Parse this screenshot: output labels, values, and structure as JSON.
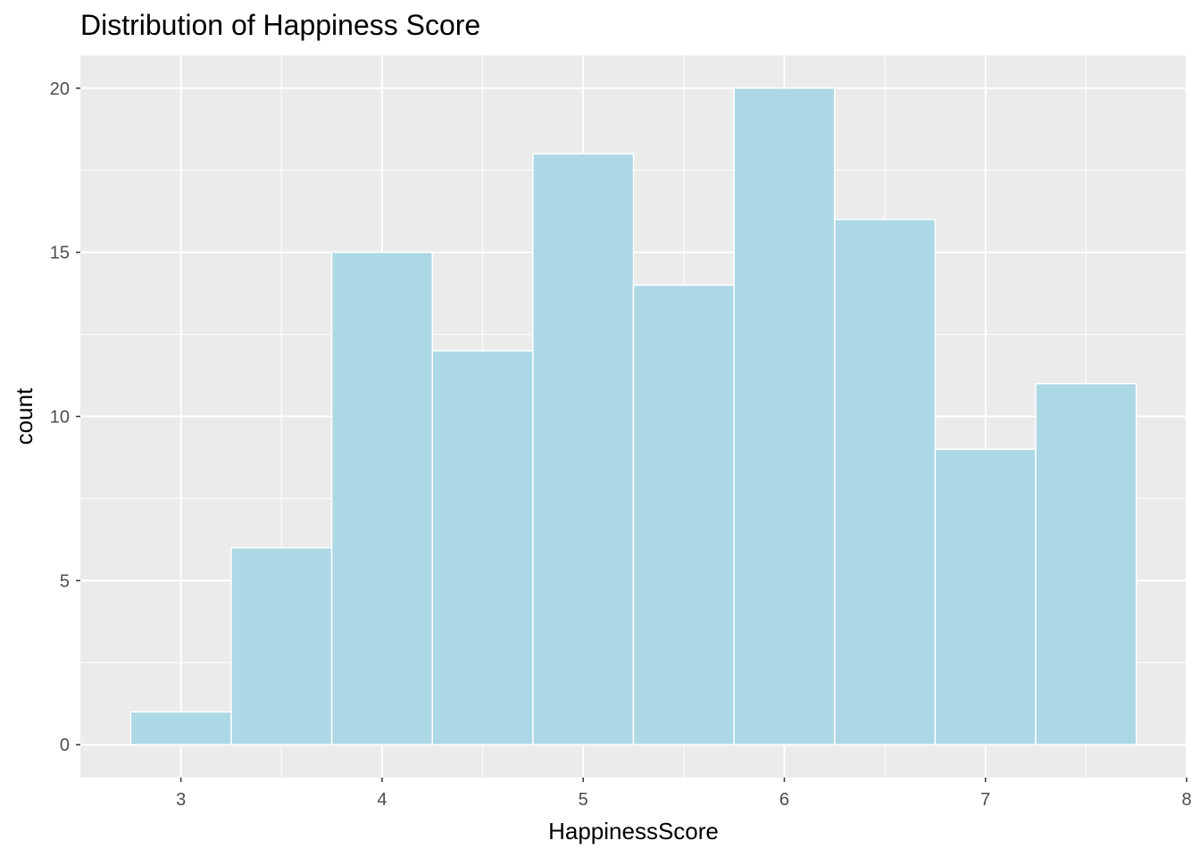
{
  "chart_data": {
    "type": "bar",
    "title": "Distribution of Happiness Score",
    "xlabel": "HappinessScore",
    "ylabel": "count",
    "bin_width": 0.5,
    "bins": [
      {
        "x_start": 2.75,
        "x_end": 3.25,
        "count": 1
      },
      {
        "x_start": 3.25,
        "x_end": 3.75,
        "count": 6
      },
      {
        "x_start": 3.75,
        "x_end": 4.25,
        "count": 15
      },
      {
        "x_start": 4.25,
        "x_end": 4.75,
        "count": 12
      },
      {
        "x_start": 4.75,
        "x_end": 5.25,
        "count": 18
      },
      {
        "x_start": 5.25,
        "x_end": 5.75,
        "count": 14
      },
      {
        "x_start": 5.75,
        "x_end": 6.25,
        "count": 20
      },
      {
        "x_start": 6.25,
        "x_end": 6.75,
        "count": 16
      },
      {
        "x_start": 6.75,
        "x_end": 7.25,
        "count": 9
      },
      {
        "x_start": 7.25,
        "x_end": 7.75,
        "count": 11
      }
    ],
    "xlim": [
      2.5,
      8
    ],
    "ylim": [
      -1,
      21
    ],
    "x_ticks": [
      3,
      4,
      5,
      6,
      7,
      8
    ],
    "y_ticks": [
      0,
      5,
      10,
      15,
      20
    ],
    "grid": true,
    "colors": {
      "bar_fill": "#add8e6",
      "bar_edge": "#ffffff",
      "panel": "#ebebeb",
      "grid": "#ffffff",
      "tick_text": "#4d4d4d"
    }
  }
}
